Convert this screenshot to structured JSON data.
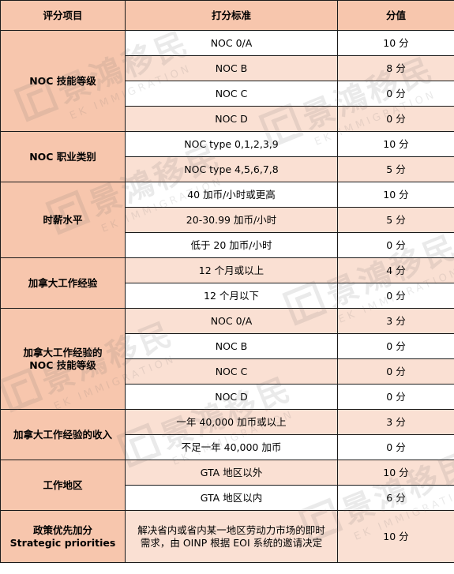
{
  "table": {
    "headers": [
      "评分项目",
      "打分标准",
      "分值"
    ],
    "sections": [
      {
        "category": [
          "NOC 技能等级"
        ],
        "rows": [
          {
            "criterion": [
              "NOC 0/A"
            ],
            "score": "10 分"
          },
          {
            "criterion": [
              "NOC B"
            ],
            "score": "8 分"
          },
          {
            "criterion": [
              "NOC C"
            ],
            "score": "0 分"
          },
          {
            "criterion": [
              "NOC D"
            ],
            "score": "0 分"
          }
        ]
      },
      {
        "category": [
          "NOC 职业类别"
        ],
        "rows": [
          {
            "criterion": [
              "NOC type 0,1,2,3,9"
            ],
            "score": "10 分"
          },
          {
            "criterion": [
              "NOC type 4,5,6,7,8"
            ],
            "score": "5 分"
          }
        ]
      },
      {
        "category": [
          "时薪水平"
        ],
        "rows": [
          {
            "criterion": [
              "40 加币/小时或更高"
            ],
            "score": "10 分"
          },
          {
            "criterion": [
              "20-30.99 加币/小时"
            ],
            "score": "5 分"
          },
          {
            "criterion": [
              "低于 20 加币/小时"
            ],
            "score": "0 分"
          }
        ]
      },
      {
        "category": [
          "加拿大工作经验"
        ],
        "rows": [
          {
            "criterion": [
              "12 个月或以上"
            ],
            "score": "4 分"
          },
          {
            "criterion": [
              "12 个月以下"
            ],
            "score": "0 分"
          }
        ]
      },
      {
        "category": [
          "加拿大工作经验的",
          "NOC 技能等级"
        ],
        "rows": [
          {
            "criterion": [
              "NOC 0/A"
            ],
            "score": "3 分"
          },
          {
            "criterion": [
              "NOC B"
            ],
            "score": "0 分"
          },
          {
            "criterion": [
              "NOC C"
            ],
            "score": "0 分"
          },
          {
            "criterion": [
              "NOC D"
            ],
            "score": "0 分"
          }
        ]
      },
      {
        "category": [
          "加拿大工作经验的收入"
        ],
        "rows": [
          {
            "criterion": [
              "一年 40,000 加币或以上"
            ],
            "score": "3 分"
          },
          {
            "criterion": [
              "不足一年 40,000 加币"
            ],
            "score": "0 分"
          }
        ]
      },
      {
        "category": [
          "工作地区"
        ],
        "rows": [
          {
            "criterion": [
              "GTA 地区以外"
            ],
            "score": "10 分"
          },
          {
            "criterion": [
              "GTA 地区以内"
            ],
            "score": "6 分"
          }
        ]
      },
      {
        "category": [
          "政策优先加分",
          "Strategic priorities"
        ],
        "rows": [
          {
            "criterion": [
              "解决省内或省内某一地区劳动力市场的即时",
              "需求，由 OINP 根据 EOI 系统的邀请决定"
            ],
            "score": "10 分",
            "tall": true
          }
        ]
      }
    ]
  },
  "watermark": {
    "chinese": "景鴻移民",
    "english": "EK IMMIGRATION",
    "color": "#666666"
  },
  "colors": {
    "header_bg": "#f7c6ad",
    "category_bg": "#f7c6ad",
    "stripe_bg": "#fae0d3",
    "border": "#1a1a1a"
  }
}
